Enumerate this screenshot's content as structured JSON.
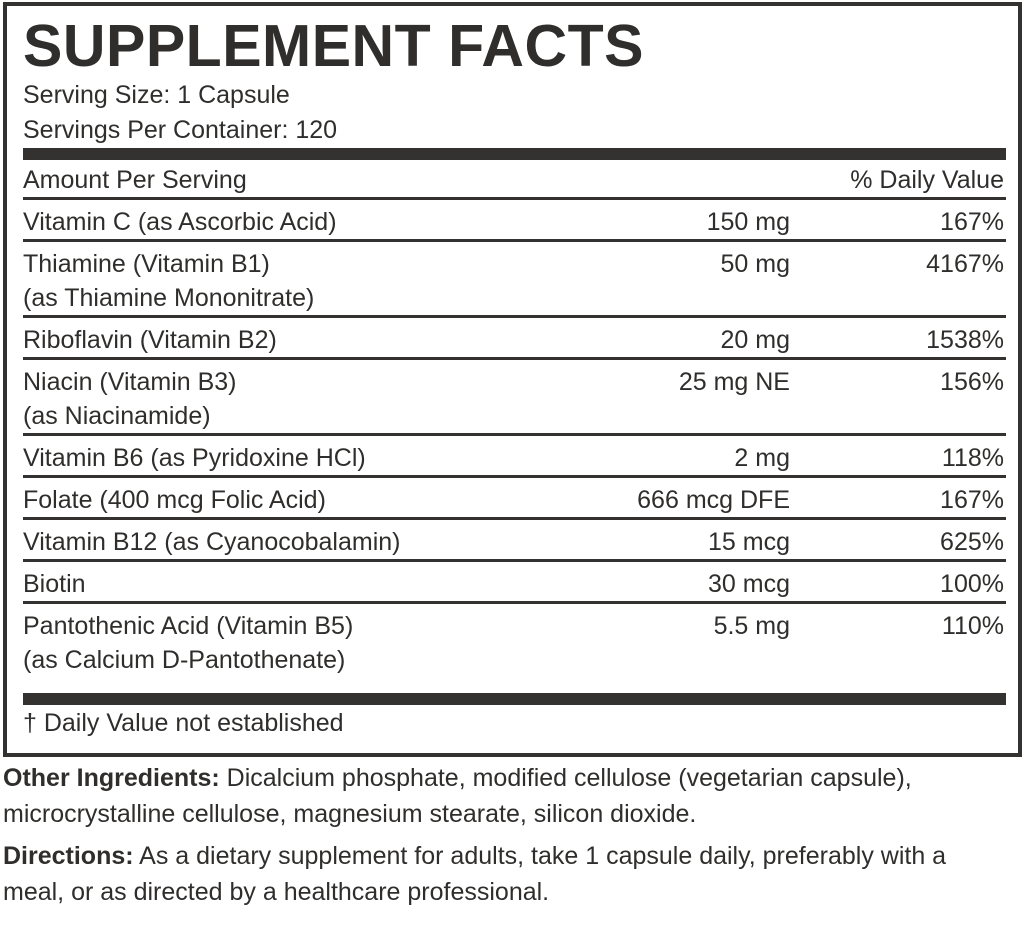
{
  "title": "SUPPLEMENT FACTS",
  "serving_size": "Serving Size: 1 Capsule",
  "servings_per_container": "Servings Per Container: 120",
  "header": {
    "amount": "Amount Per Serving",
    "daily_value": "% Daily Value"
  },
  "rows": [
    {
      "name": [
        "Vitamin C (as Ascorbic Acid)"
      ],
      "amount": "150 mg",
      "dv": "167%"
    },
    {
      "name": [
        "Thiamine (Vitamin B1)",
        "(as Thiamine Mononitrate)"
      ],
      "amount": "50 mg",
      "dv": "4167%"
    },
    {
      "name": [
        "Riboflavin (Vitamin B2)"
      ],
      "amount": "20 mg",
      "dv": "1538%"
    },
    {
      "name": [
        "Niacin (Vitamin B3)",
        "(as Niacinamide)"
      ],
      "amount": "25 mg NE",
      "dv": "156%"
    },
    {
      "name": [
        "Vitamin B6 (as Pyridoxine HCl)"
      ],
      "amount": "2 mg",
      "dv": "118%"
    },
    {
      "name": [
        "Folate (400 mcg Folic Acid)"
      ],
      "amount": "666 mcg DFE",
      "dv": "167%"
    },
    {
      "name": [
        "Vitamin B12 (as Cyanocobalamin)"
      ],
      "amount": "15 mcg",
      "dv": "625%"
    },
    {
      "name": [
        "Biotin"
      ],
      "amount": "30 mcg",
      "dv": "100%"
    },
    {
      "name": [
        "Pantothenic Acid (Vitamin B5)",
        "(as Calcium D-Pantothenate)"
      ],
      "amount": "5.5 mg",
      "dv": "110%"
    }
  ],
  "footnote": "† Daily Value not established",
  "other_ingredients": {
    "label": "Other Ingredients:",
    "text": " Dicalcium phosphate, modified cellulose (vegetarian capsule), microcrystalline cellulose, magnesium stearate, silicon dioxide."
  },
  "directions": {
    "label": "Directions:",
    "text": " As a dietary supplement for adults, take 1 capsule daily, preferably with a meal, or as directed by a healthcare professional."
  }
}
